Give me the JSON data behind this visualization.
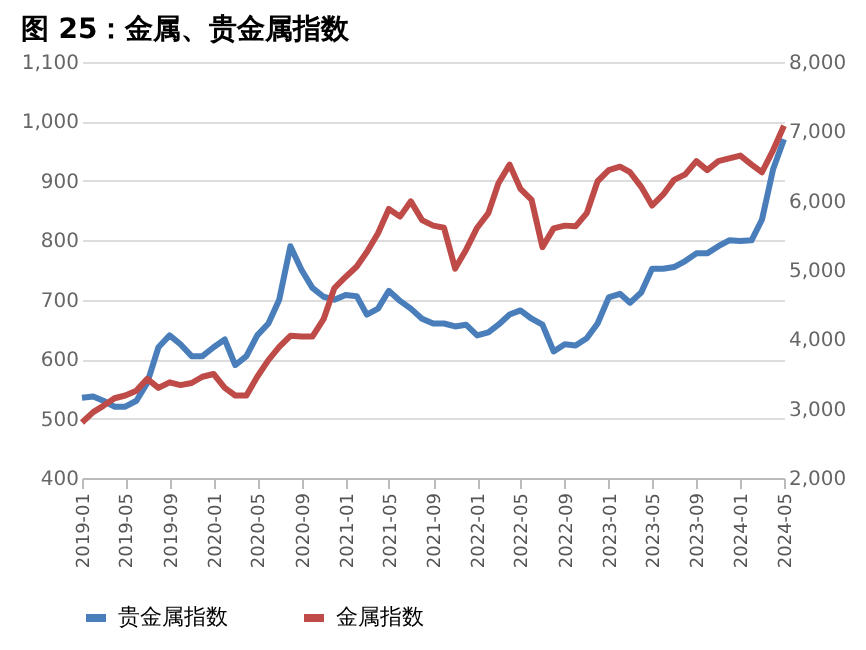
{
  "chart_data": {
    "type": "line",
    "title": "图 25：金属、贵金属指数",
    "x": [
      "2019-01",
      "2019-02",
      "2019-03",
      "2019-04",
      "2019-05",
      "2019-06",
      "2019-07",
      "2019-08",
      "2019-09",
      "2019-10",
      "2019-11",
      "2019-12",
      "2020-01",
      "2020-02",
      "2020-03",
      "2020-04",
      "2020-05",
      "2020-06",
      "2020-07",
      "2020-08",
      "2020-09",
      "2020-10",
      "2020-11",
      "2020-12",
      "2021-01",
      "2021-02",
      "2021-03",
      "2021-04",
      "2021-05",
      "2021-06",
      "2021-07",
      "2021-08",
      "2021-09",
      "2021-10",
      "2021-11",
      "2021-12",
      "2022-01",
      "2022-02",
      "2022-03",
      "2022-04",
      "2022-05",
      "2022-06",
      "2022-07",
      "2022-08",
      "2022-09",
      "2022-10",
      "2022-11",
      "2022-12",
      "2023-01",
      "2023-02",
      "2023-03",
      "2023-04",
      "2023-05",
      "2023-06",
      "2023-07",
      "2023-08",
      "2023-09",
      "2023-10",
      "2023-11",
      "2023-12",
      "2024-01",
      "2024-02",
      "2024-03",
      "2024-04",
      "2024-05"
    ],
    "series": [
      {
        "name": "贵金属指数",
        "color": "#4a7ebb",
        "values": [
          535,
          537,
          530,
          520,
          520,
          530,
          560,
          620,
          640,
          625,
          605,
          605,
          620,
          633,
          590,
          605,
          640,
          660,
          700,
          790,
          750,
          720,
          705,
          700,
          708,
          706,
          675,
          685,
          715,
          698,
          685,
          668,
          660,
          660,
          655,
          658,
          640,
          645,
          658,
          675,
          682,
          668,
          658,
          613,
          625,
          623,
          635,
          660,
          704,
          710,
          695,
          712,
          752,
          752,
          755,
          765,
          778,
          778,
          790,
          800,
          799,
          800,
          835,
          920,
          970
        ]
      },
      {
        "name": "金属指数",
        "color": "#be4b48",
        "axis": "y2",
        "values": [
          2800,
          2950,
          3040,
          3150,
          3190,
          3260,
          3430,
          3300,
          3380,
          3340,
          3370,
          3460,
          3500,
          3300,
          3190,
          3190,
          3460,
          3700,
          3890,
          4050,
          4040,
          4040,
          4290,
          4740,
          4900,
          5050,
          5260,
          5530,
          5880,
          5770,
          5990,
          5720,
          5640,
          5610,
          5020,
          5290,
          5610,
          5820,
          6250,
          6520,
          6170,
          6010,
          5330,
          5600,
          5640,
          5630,
          5820,
          6280,
          6440,
          6490,
          6410,
          6200,
          5930,
          6090,
          6300,
          6380,
          6570,
          6440,
          6570,
          6610,
          6650,
          6520,
          6410,
          6730,
          7080
        ]
      }
    ],
    "xlim": [
      "2019-01",
      "2024-05"
    ],
    "xticks": [
      "2019-01",
      "2019-05",
      "2019-09",
      "2020-01",
      "2020-05",
      "2020-09",
      "2021-01",
      "2021-05",
      "2021-09",
      "2022-01",
      "2022-05",
      "2022-09",
      "2023-01",
      "2023-05",
      "2023-09",
      "2024-01",
      "2024-05"
    ],
    "ylim": [
      400,
      1100
    ],
    "yticks": [
      400,
      500,
      600,
      700,
      800,
      900,
      {
        "value": 1000,
        "label": "1,000"
      },
      {
        "value": 1100,
        "label": "1,100"
      }
    ],
    "y2lim": [
      2000,
      8000
    ],
    "y2ticks": [
      {
        "value": 2000,
        "label": "2,000"
      },
      {
        "value": 3000,
        "label": "3,000"
      },
      {
        "value": 4000,
        "label": "4,000"
      },
      {
        "value": 5000,
        "label": "5,000"
      },
      {
        "value": 6000,
        "label": "6,000"
      },
      {
        "value": 7000,
        "label": "7,000"
      },
      {
        "value": 8000,
        "label": "8,000"
      }
    ],
    "grid": "y",
    "legend": "bottom",
    "marker": "none",
    "line_style": "solid"
  }
}
